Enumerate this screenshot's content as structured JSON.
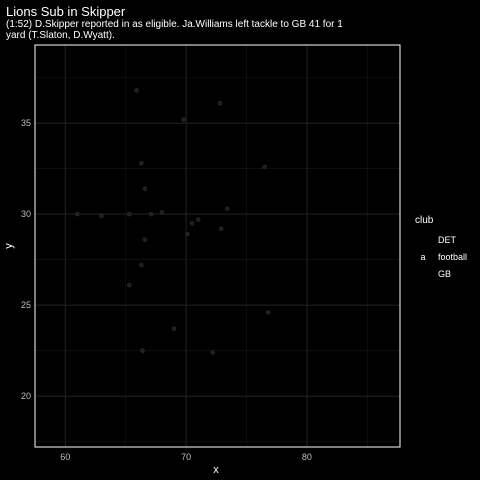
{
  "chart_data": {
    "type": "scatter",
    "title": "Lions Sub in Skipper",
    "subtitle_lines": [
      "(1:52) D.Skipper reported in as eligible. Ja.Williams left tackle to GB 41 for 1",
      "yard (T.Slaton, D.Wyatt)."
    ],
    "xlabel": "x",
    "ylabel": "y",
    "xlim": [
      57.5,
      87.7
    ],
    "ylim": [
      17.2,
      39.3
    ],
    "x_ticks": [
      60,
      70,
      80
    ],
    "y_ticks": [
      20,
      25,
      30,
      35
    ],
    "grid": true,
    "legend": {
      "title": "club",
      "position": "right",
      "entries": [
        {
          "key": "",
          "label": "DET",
          "color": "#000000"
        },
        {
          "key": "a",
          "label": "football",
          "color": "#00ba38"
        },
        {
          "key": "",
          "label": "GB",
          "color": "#000000"
        }
      ]
    },
    "points": [
      {
        "x": 65.9,
        "y": 36.8
      },
      {
        "x": 72.8,
        "y": 36.1
      },
      {
        "x": 69.8,
        "y": 35.2
      },
      {
        "x": 66.3,
        "y": 32.8
      },
      {
        "x": 76.5,
        "y": 32.6
      },
      {
        "x": 66.6,
        "y": 31.4
      },
      {
        "x": 61.0,
        "y": 30.0
      },
      {
        "x": 63.0,
        "y": 29.9
      },
      {
        "x": 65.3,
        "y": 30.0
      },
      {
        "x": 67.1,
        "y": 30.0
      },
      {
        "x": 68.0,
        "y": 30.1
      },
      {
        "x": 73.4,
        "y": 30.3
      },
      {
        "x": 71.0,
        "y": 29.7
      },
      {
        "x": 70.5,
        "y": 29.5
      },
      {
        "x": 70.1,
        "y": 28.9
      },
      {
        "x": 72.9,
        "y": 29.2
      },
      {
        "x": 66.6,
        "y": 28.6
      },
      {
        "x": 66.3,
        "y": 27.2
      },
      {
        "x": 65.3,
        "y": 26.1
      },
      {
        "x": 76.8,
        "y": 24.6
      },
      {
        "x": 69.0,
        "y": 23.7
      },
      {
        "x": 66.4,
        "y": 22.5
      },
      {
        "x": 72.2,
        "y": 22.4
      }
    ]
  }
}
